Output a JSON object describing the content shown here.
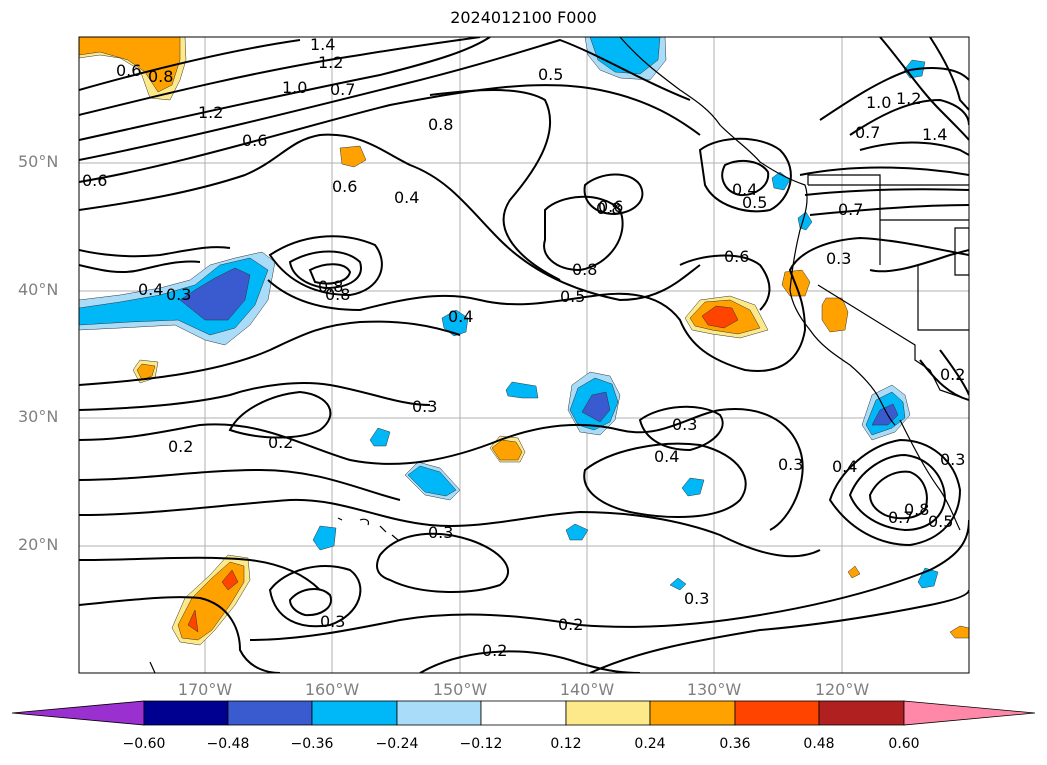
{
  "title": "2024012100 F000",
  "lat_labels": [
    "50°N",
    "40°N",
    "30°N",
    "20°N"
  ],
  "lon_labels": [
    "170°W",
    "160°W",
    "150°W",
    "140°W",
    "130°W",
    "120°W"
  ],
  "colorbar": {
    "ticks": [
      "−0.60",
      "−0.48",
      "−0.36",
      "−0.24",
      "−0.12",
      "0.12",
      "0.24",
      "0.36",
      "0.48",
      "0.60"
    ],
    "colors": [
      "#9b30d0",
      "#000090",
      "#3a5bd0",
      "#00b8f8",
      "#a8dcf8",
      "#ffffff",
      "#fde98a",
      "#ffa200",
      "#ff4400",
      "#b02020",
      "#ff88a8"
    ]
  },
  "contour_labels": [
    "1.4",
    "1.2",
    "1.0",
    "0.7",
    "0.6",
    "1.2",
    "0.6",
    "0.8",
    "0.6",
    "0.8",
    "0.6",
    "0.5",
    "0.6",
    "0.4",
    "0.8",
    "0.4",
    "0.5",
    "0.7",
    "1.0",
    "1.2",
    "1.4",
    "0.7",
    "0.6",
    "0.8",
    "0.3",
    "0.4",
    "0.3",
    "0.8",
    "0.8",
    "0.5",
    "0.4",
    "0.3",
    "0.3",
    "0.2",
    "0.2",
    "0.3",
    "0.4",
    "0.3",
    "0.4",
    "0.8",
    "0.7",
    "0.5",
    "0.2",
    "0.3",
    "0.3",
    "0.3",
    "0.2",
    "0.2"
  ]
}
